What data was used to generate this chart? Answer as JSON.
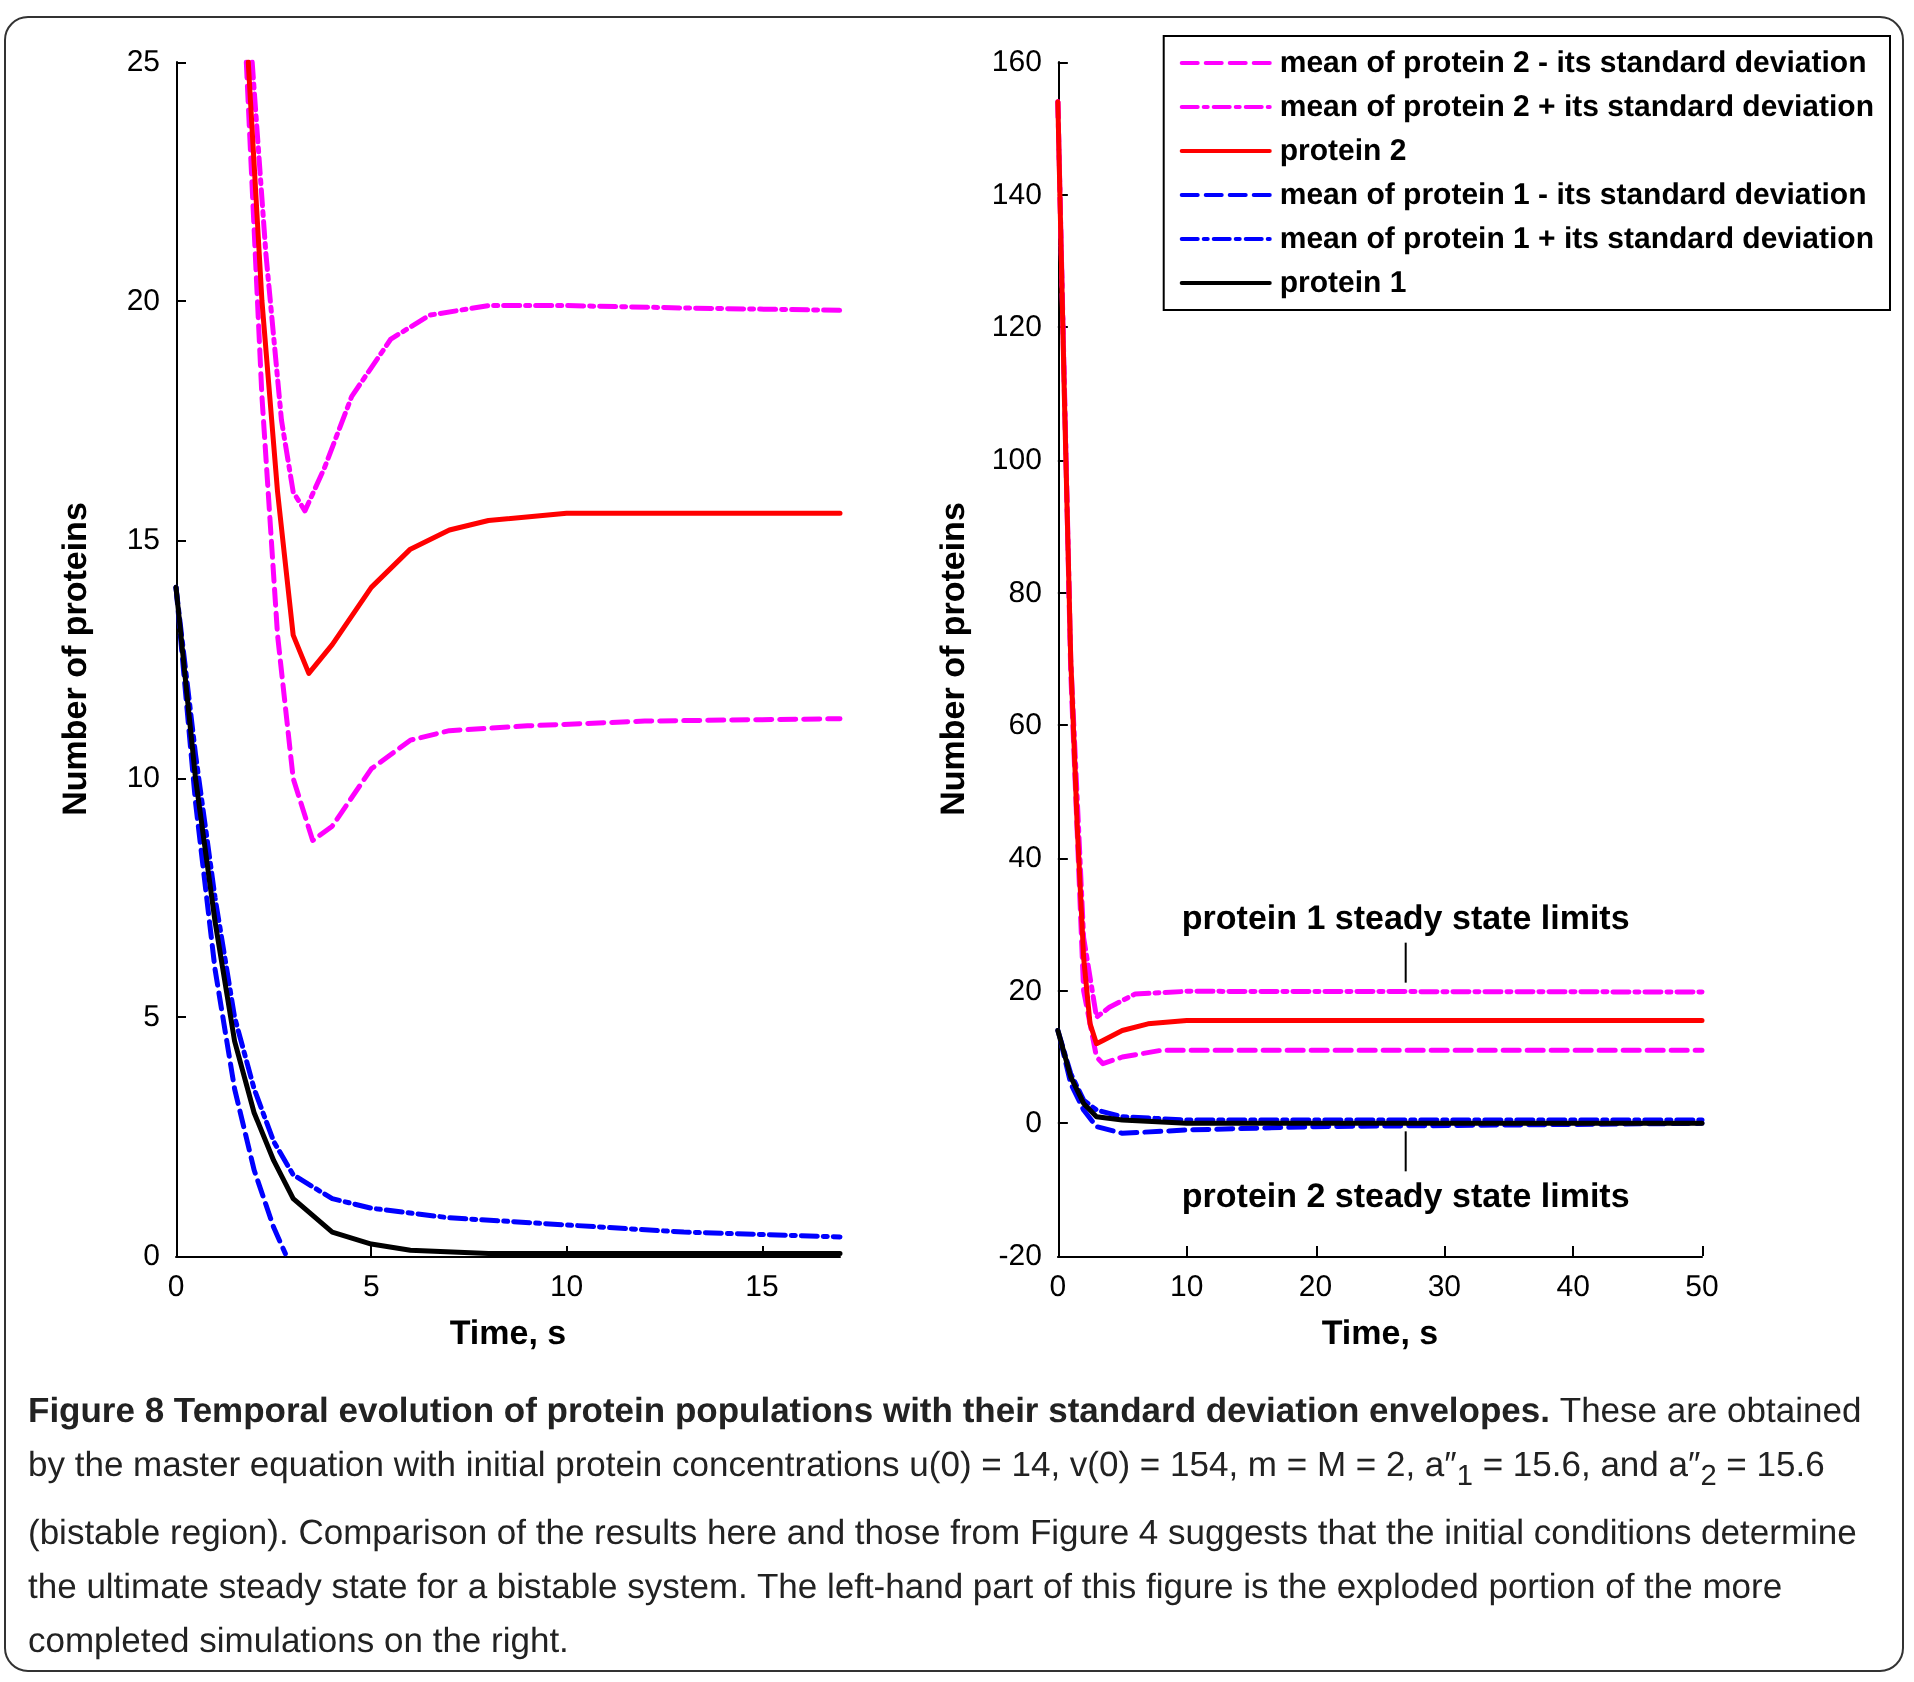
{
  "chart_data": [
    {
      "type": "line",
      "xlabel": "Time, s",
      "ylabel": "Number of proteins",
      "xlim": [
        0,
        17
      ],
      "xticks": [
        0,
        5,
        10,
        15
      ],
      "ylim": [
        0,
        25
      ],
      "yticks": [
        0,
        5,
        10,
        15,
        20,
        25
      ],
      "grid": false,
      "marker": "none",
      "series": [
        {
          "color": "#ff00ff",
          "line_style": "dashed",
          "x": [
            1.8,
            2.2,
            2.6,
            3.0,
            3.5,
            4,
            5,
            6,
            7,
            9,
            12,
            17
          ],
          "values": [
            25,
            18,
            13,
            10,
            8.7,
            9,
            10.2,
            10.8,
            11,
            11.1,
            11.2,
            11.25
          ]
        },
        {
          "color": "#ff00ff",
          "line_style": "dashdot",
          "x": [
            1.95,
            2.3,
            2.7,
            3.0,
            3.3,
            3.8,
            4.5,
            5.5,
            6.5,
            8,
            10,
            13,
            17
          ],
          "values": [
            25,
            21,
            17.5,
            16,
            15.6,
            16.5,
            18,
            19.2,
            19.7,
            19.9,
            19.9,
            19.85,
            19.8
          ]
        },
        {
          "color": "#ff0000",
          "line_style": "solid",
          "x": [
            1.85,
            2.2,
            2.6,
            3.0,
            3.4,
            4,
            5,
            6,
            7,
            8,
            10,
            12,
            17
          ],
          "values": [
            25,
            20,
            16,
            13,
            12.2,
            12.8,
            14,
            14.8,
            15.2,
            15.4,
            15.55,
            15.55,
            15.55
          ]
        },
        {
          "color": "#0000ff",
          "line_style": "dashed",
          "x": [
            0,
            0.5,
            1,
            1.5,
            2,
            2.5,
            2.8
          ],
          "values": [
            14,
            9.5,
            6,
            3.5,
            1.8,
            0.6,
            0.05
          ]
        },
        {
          "color": "#0000ff",
          "line_style": "dashdot",
          "x": [
            0,
            0.5,
            1,
            1.5,
            2,
            2.5,
            3,
            4,
            5,
            7,
            10,
            13,
            17
          ],
          "values": [
            14,
            10.5,
            7.5,
            5,
            3.5,
            2.4,
            1.7,
            1.2,
            1,
            0.8,
            0.65,
            0.5,
            0.4
          ]
        },
        {
          "color": "#000000",
          "line_style": "solid",
          "x": [
            0,
            0.5,
            1,
            1.5,
            2,
            2.5,
            3,
            4,
            5,
            6,
            8,
            10,
            17
          ],
          "values": [
            14,
            10,
            7,
            4.5,
            3,
            2,
            1.2,
            0.5,
            0.25,
            0.12,
            0.05,
            0.05,
            0.05
          ]
        }
      ],
      "annotations": [
        "Figure 8 Temporal evolution of protein populations with their standard deviation envelopes.",
        "These are obtained by the master equation with initial protein concentrations u(0) = 14, v(0) = 154, m = M = 2, a″$_{1}$ = 15.6, and a″$_{2}$ = 15.6 (bistable region). Comparison of the results here and those from Figure 4 suggests that the initial conditions determine the ultimate steady state for a bistable system. The left-hand part of this figure is the exploded portion of the more completed simulations on the right."
      ]
    },
    {
      "type": "line",
      "xlabel": "Time, s",
      "ylabel": "Number of proteins",
      "xlim": [
        0,
        50
      ],
      "xticks": [
        0,
        10,
        20,
        30,
        40,
        50
      ],
      "ylim": [
        -20,
        160
      ],
      "yticks": [
        -20,
        0,
        20,
        40,
        60,
        80,
        100,
        120,
        140,
        160
      ],
      "grid": false,
      "marker": "none",
      "legend": "top right",
      "series": [
        {
          "name": "mean of protein 2 - its standard deviation",
          "color": "#ff00ff",
          "line_style": "dashed",
          "x": [
            0,
            1,
            2,
            3,
            3.5,
            5,
            8,
            50
          ],
          "values": [
            154,
            68,
            20,
            10,
            9,
            10,
            11,
            11
          ]
        },
        {
          "name": "mean of protein 2 + its standard deviation",
          "color": "#ff00ff",
          "line_style": "dashdot",
          "x": [
            0,
            1,
            2,
            3,
            4,
            6,
            10,
            50
          ],
          "values": [
            154,
            70,
            28,
            16,
            17.5,
            19.5,
            19.9,
            19.8
          ]
        },
        {
          "name": "protein 2",
          "color": "#ff0000",
          "line_style": "solid",
          "x": [
            0,
            0.5,
            1,
            1.5,
            2,
            2.5,
            3,
            3.5,
            5,
            7,
            10,
            50
          ],
          "values": [
            154,
            110,
            70,
            45,
            25,
            15,
            12,
            12.5,
            14,
            15,
            15.5,
            15.5
          ]
        },
        {
          "name": "mean of protein 1 - its standard deviation",
          "color": "#0000ff",
          "line_style": "dashed",
          "x": [
            0.2,
            1,
            2,
            3,
            5,
            10,
            20,
            50
          ],
          "values": [
            12.5,
            6,
            2,
            -0.5,
            -1.5,
            -1,
            -0.5,
            0
          ]
        },
        {
          "name": "mean of protein 1 + its standard deviation",
          "color": "#0000ff",
          "line_style": "dashdot",
          "x": [
            0,
            1,
            2,
            3,
            5,
            10,
            20,
            50
          ],
          "values": [
            14,
            7.5,
            3.5,
            2,
            1,
            0.5,
            0.5,
            0.5
          ]
        },
        {
          "name": "protein 1",
          "color": "#000000",
          "line_style": "solid",
          "x": [
            0,
            1,
            2,
            3,
            5,
            10,
            50
          ],
          "values": [
            14,
            7,
            3,
            1,
            0.5,
            0,
            0
          ]
        }
      ],
      "annotations": [
        {
          "text": "protein 1 steady state limits",
          "x": 27,
          "y": 20
        },
        {
          "text": "protein 2 steady state limits",
          "x": 27,
          "y": 0
        }
      ]
    }
  ]
}
